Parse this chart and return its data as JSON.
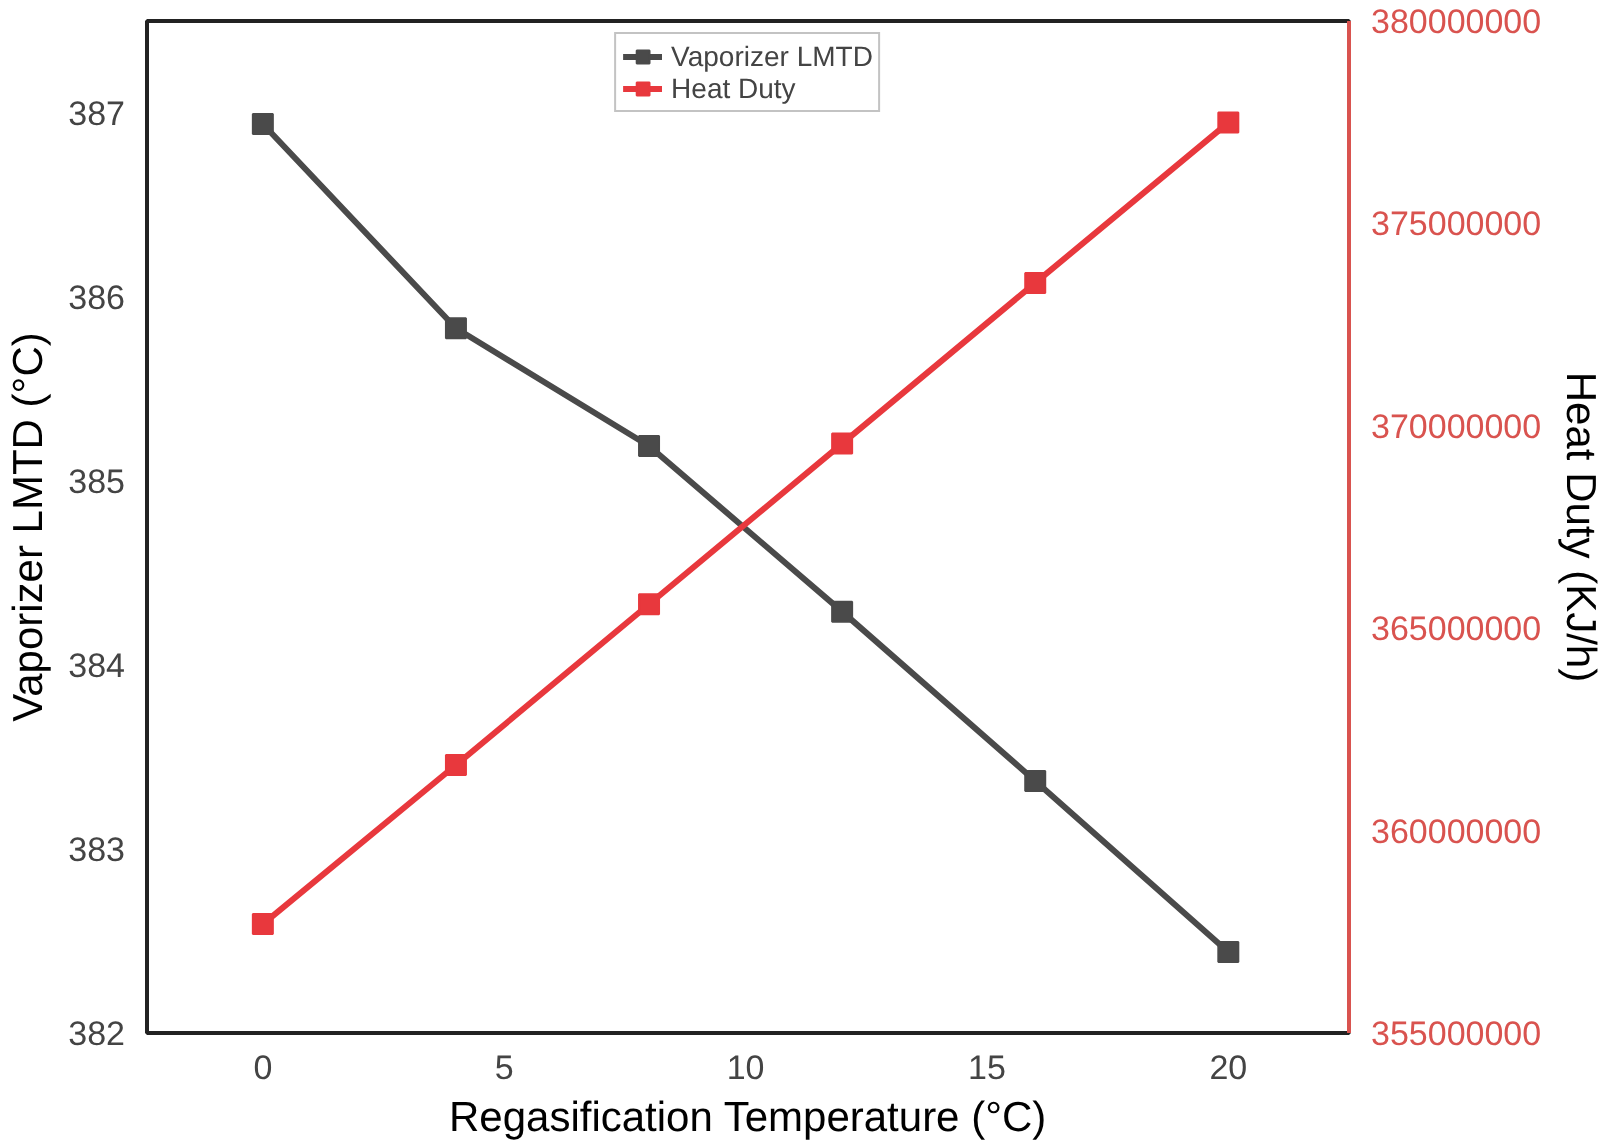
{
  "chart_data": {
    "type": "line",
    "xlabel": "Regasification Temperature (°C)",
    "ylabel": "Vaporizer LMTD (°C)",
    "y2label": "Heat Duty (KJ/h)",
    "x": [
      0,
      4,
      8,
      12,
      16,
      20
    ],
    "xlim": [
      -2.4,
      22.5
    ],
    "xticks": [
      0,
      5,
      10,
      15,
      20
    ],
    "ylim": [
      382,
      387.5
    ],
    "yticks": [
      382,
      383,
      384,
      385,
      386,
      387
    ],
    "y2lim": [
      355000000,
      380000000
    ],
    "y2ticks": [
      355000000,
      360000000,
      365000000,
      370000000,
      375000000,
      380000000
    ],
    "series": [
      {
        "name": "Vaporizer LMTD",
        "color": "#4a4a4a",
        "values": [
          386.94,
          385.83,
          385.19,
          384.29,
          383.37,
          382.44
        ]
      },
      {
        "name": "Heat Duty",
        "color": "#e8383d",
        "axis": "y2",
        "values": [
          357690000,
          361620000,
          365590000,
          369560000,
          373530000,
          377490000
        ]
      }
    ],
    "marker": "square",
    "line_style": "solid",
    "legend": "top",
    "grid": false
  }
}
